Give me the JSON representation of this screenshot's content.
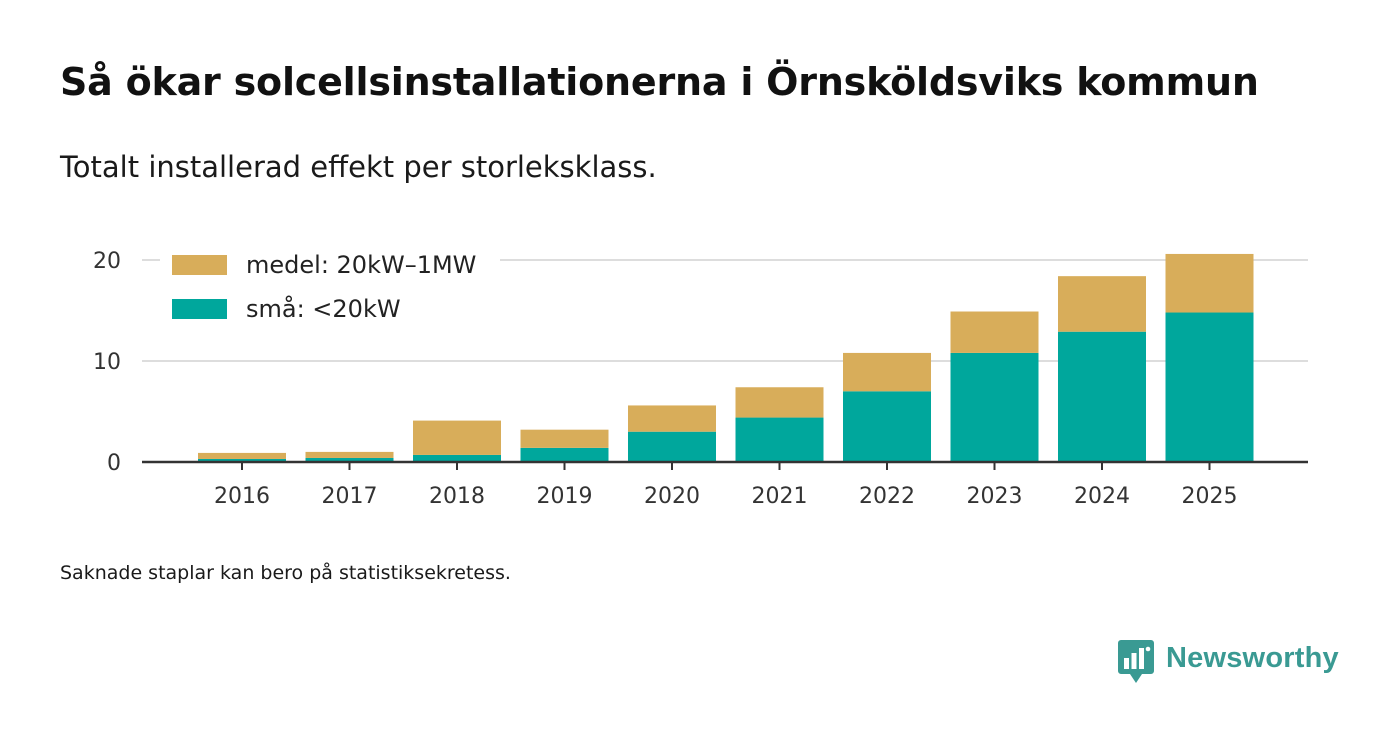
{
  "title": "Så ökar solcellsinstallationerna i Örnsköldsviks kommun",
  "subtitle": "Totalt installerad effekt per storleksklass.",
  "footnote": "Saknade staplar kan bero på statistiksekretess.",
  "brand": {
    "name": "Newsworthy",
    "icon": "newsworthy-logo-icon",
    "color": "#3a9a93"
  },
  "chart_data": {
    "type": "bar",
    "stacked": true,
    "categories": [
      "2016",
      "2017",
      "2018",
      "2019",
      "2020",
      "2021",
      "2022",
      "2023",
      "2024",
      "2025"
    ],
    "series": [
      {
        "name": "små: <20kW",
        "color": "#00a79c",
        "values": [
          0.3,
          0.4,
          0.7,
          1.4,
          3.0,
          4.4,
          7.0,
          10.8,
          12.9,
          14.8
        ]
      },
      {
        "name": "medel: 20kW–1MW",
        "color": "#d8ad5a",
        "values": [
          0.6,
          0.6,
          3.4,
          1.8,
          2.6,
          3.0,
          3.8,
          4.1,
          5.5,
          5.8
        ]
      }
    ],
    "legend_order": [
      "medel: 20kW–1MW",
      "små: <20kW"
    ],
    "legend_position": "top-left",
    "yticks": [
      0,
      10,
      20
    ],
    "ylim": [
      0,
      20.6
    ],
    "grid": true,
    "xlabel": "",
    "ylabel": ""
  }
}
